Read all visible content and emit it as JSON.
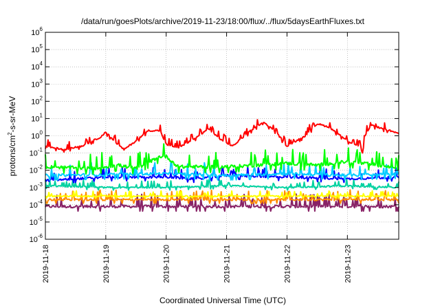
{
  "chart_data": {
    "type": "line",
    "title": "/data/run/goesPlots/archive/2019-11-23/18:00/flux/../flux/5daysEarthFluxes.txt",
    "xlabel": "Coordinated Universal Time (UTC)",
    "ylabel": "protons/cm2-s-sr-MeV",
    "ylabel_parts": {
      "base": "protons/cm",
      "sup": "2",
      "rest": "-s-sr-MeV"
    },
    "y_scale": "log",
    "ylim_exp": [
      -6,
      6
    ],
    "y_ticks": [
      {
        "base": "10",
        "exp": "-6"
      },
      {
        "base": "10",
        "exp": "-5"
      },
      {
        "base": "10",
        "exp": "-4"
      },
      {
        "base": "10",
        "exp": "-3"
      },
      {
        "base": "10",
        "exp": "-2"
      },
      {
        "base": "10",
        "exp": "-1"
      },
      {
        "base": "10",
        "exp": "0"
      },
      {
        "base": "10",
        "exp": "1"
      },
      {
        "base": "10",
        "exp": "2"
      },
      {
        "base": "10",
        "exp": "3"
      },
      {
        "base": "10",
        "exp": "4"
      },
      {
        "base": "10",
        "exp": "5"
      },
      {
        "base": "10",
        "exp": "6"
      }
    ],
    "x_ticks": [
      "2019-11-18",
      "2019-11-19",
      "2019-11-20",
      "2019-11-21",
      "2019-11-22",
      "2019-11-23"
    ],
    "xlim_days": [
      0,
      5.85
    ],
    "grid": true,
    "series": [
      {
        "color": "#ff0000",
        "base": [
          [
            0,
            -0.6
          ],
          [
            0.3,
            -0.8
          ],
          [
            0.6,
            -0.6
          ],
          [
            0.9,
            -0.1
          ],
          [
            1.0,
            0.2
          ],
          [
            1.2,
            -0.5
          ],
          [
            1.3,
            -0.8
          ],
          [
            1.5,
            -0.3
          ],
          [
            1.7,
            0.3
          ],
          [
            1.9,
            0.3
          ],
          [
            2.0,
            -0.5
          ],
          [
            2.2,
            -0.7
          ],
          [
            2.5,
            -0.1
          ],
          [
            2.7,
            0.4
          ],
          [
            2.9,
            -0.2
          ],
          [
            3.1,
            -0.6
          ],
          [
            3.4,
            0.3
          ],
          [
            3.6,
            0.8
          ],
          [
            3.8,
            0.3
          ],
          [
            4.0,
            -0.6
          ],
          [
            4.3,
            0.0
          ],
          [
            4.5,
            0.7
          ],
          [
            4.7,
            0.5
          ],
          [
            5.0,
            -0.3
          ],
          [
            5.2,
            -0.6
          ],
          [
            5.25,
            -1.0
          ],
          [
            5.3,
            0.1
          ],
          [
            5.4,
            0.6
          ],
          [
            5.6,
            0.4
          ],
          [
            5.7,
            0.3
          ],
          [
            5.85,
            0.1
          ]
        ],
        "noise": 0.25
      },
      {
        "color": "#00ff00",
        "base": [
          [
            0,
            -1.8
          ],
          [
            0.8,
            -1.9
          ],
          [
            1.2,
            -1.7
          ],
          [
            1.5,
            -1.9
          ],
          [
            1.9,
            -1.2
          ],
          [
            2.0,
            -1.2
          ],
          [
            2.2,
            -1.8
          ],
          [
            3.0,
            -1.8
          ],
          [
            4.0,
            -1.6
          ],
          [
            4.5,
            -1.7
          ],
          [
            5.0,
            -1.5
          ],
          [
            5.5,
            -1.7
          ],
          [
            5.85,
            -1.9
          ]
        ],
        "noise": 0.55
      },
      {
        "color": "#00ccff",
        "base": [
          [
            0,
            -2.3
          ],
          [
            2.0,
            -2.2
          ],
          [
            3.0,
            -2.3
          ],
          [
            4.0,
            -2.2
          ],
          [
            5.0,
            -2.3
          ],
          [
            5.85,
            -2.2
          ]
        ],
        "noise": 0.45
      },
      {
        "color": "#0000ff",
        "base": [
          [
            0,
            -2.6
          ],
          [
            1.0,
            -2.4
          ],
          [
            2.0,
            -2.4
          ],
          [
            2.5,
            -2.5
          ],
          [
            3.0,
            -2.3
          ],
          [
            4.0,
            -2.4
          ],
          [
            5.0,
            -2.5
          ],
          [
            5.85,
            -2.4
          ]
        ],
        "noise": 0.35
      },
      {
        "color": "#00d2a0",
        "base": [
          [
            0,
            -2.9
          ],
          [
            1.0,
            -3.0
          ],
          [
            2.0,
            -3.0
          ],
          [
            3.0,
            -2.9
          ],
          [
            4.0,
            -3.0
          ],
          [
            5.0,
            -2.9
          ],
          [
            5.85,
            -3.0
          ]
        ],
        "noise": 0.25
      },
      {
        "color": "#ffff00",
        "base": [
          [
            0,
            -3.5
          ],
          [
            2.0,
            -3.5
          ],
          [
            4.0,
            -3.5
          ],
          [
            5.85,
            -3.5
          ]
        ],
        "noise": 0.2
      },
      {
        "color": "#ff8c00",
        "base": [
          [
            0,
            -3.7
          ],
          [
            2.0,
            -3.7
          ],
          [
            4.0,
            -3.7
          ],
          [
            5.85,
            -3.7
          ]
        ],
        "noise": 0.35
      },
      {
        "color": "#882266",
        "base": [
          [
            0,
            -4.1
          ],
          [
            2.0,
            -4.1
          ],
          [
            4.0,
            -4.1
          ],
          [
            5.85,
            -4.1
          ]
        ],
        "noise": 0.45
      }
    ]
  }
}
